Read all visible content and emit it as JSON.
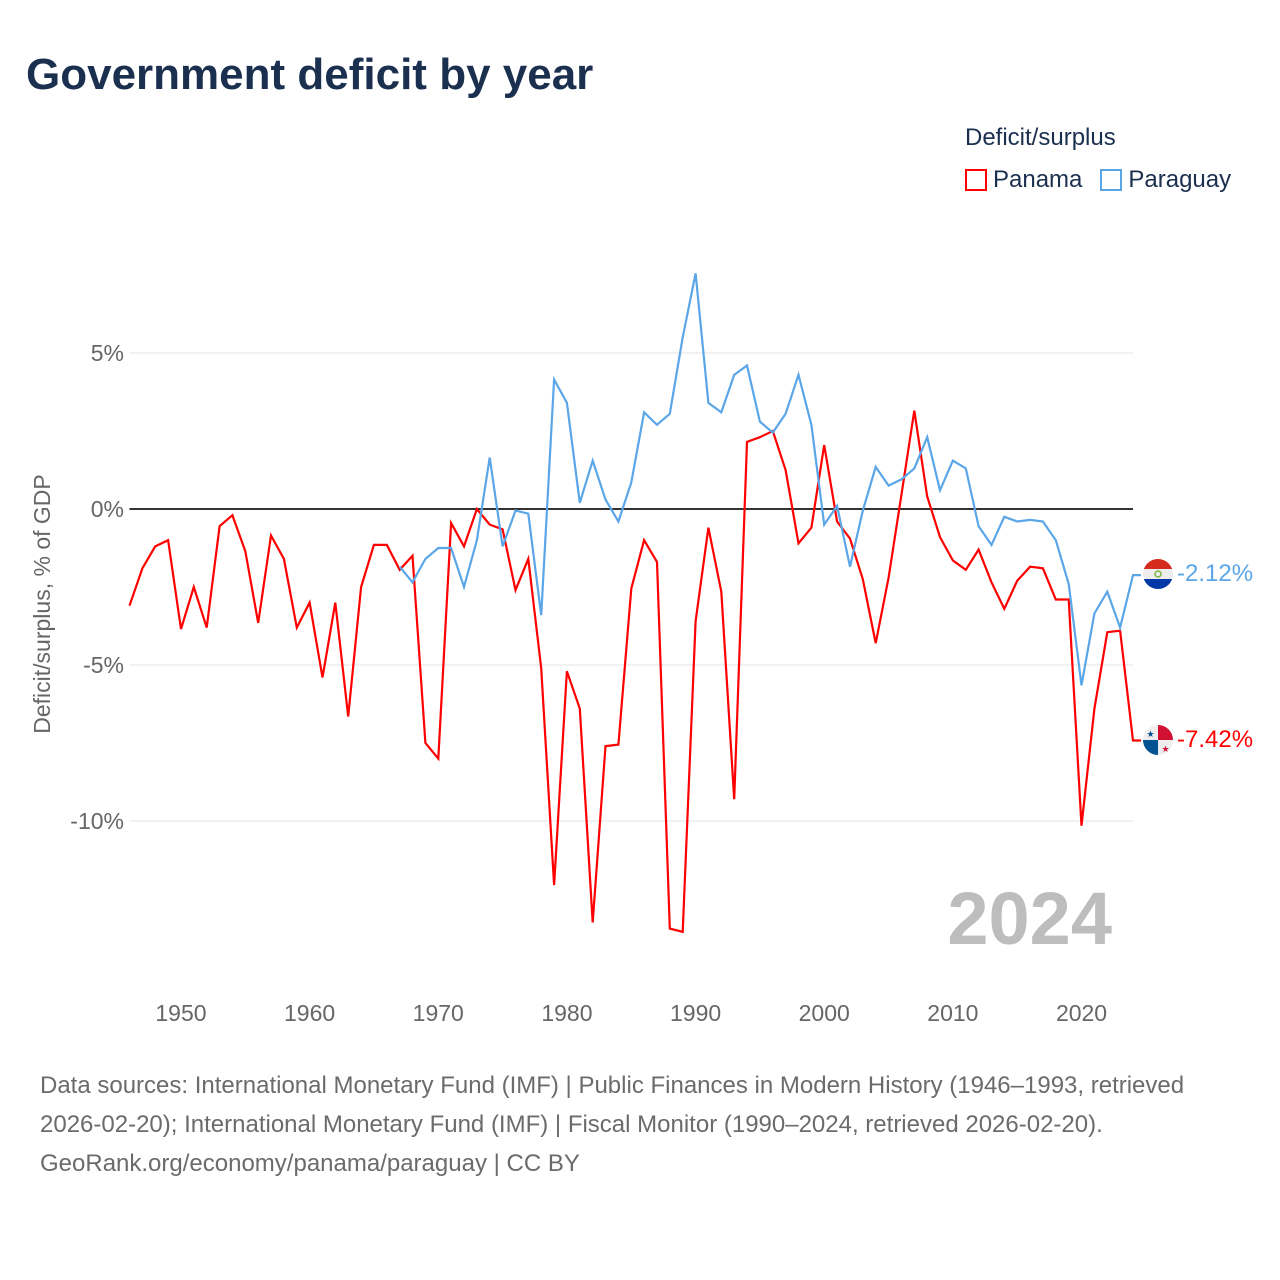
{
  "title": "Government deficit by year",
  "legend": {
    "title": "Deficit/surplus",
    "items": [
      {
        "label": "Panama",
        "color": "#ff0000"
      },
      {
        "label": "Paraguay",
        "color": "#5aa6e8"
      }
    ]
  },
  "year_watermark": "2024",
  "footer": {
    "sources": "Data sources: International Monetary Fund (IMF) | Public Finances in Modern History (1946–1993, retrieved 2026-02-20); International Monetary Fund (IMF) | Fiscal Monitor (1990–2024, retrieved 2026-02-20).",
    "attribution": "GeoRank.org/economy/panama/paraguay | CC BY"
  },
  "chart_data": {
    "type": "line",
    "title": "Government deficit by year",
    "xlabel": "",
    "ylabel": "Deficit/surplus, % of GDP",
    "xlim": [
      1946,
      2024
    ],
    "ylim": [
      -14.5,
      8
    ],
    "x_ticks": [
      1950,
      1960,
      1970,
      1980,
      1990,
      2000,
      2010,
      2020
    ],
    "x_tick_labels": [
      "1950",
      "1960",
      "1970",
      "1980",
      "1990",
      "2000",
      "2010",
      "2020"
    ],
    "y_ticks": [
      5,
      0,
      -5,
      -10
    ],
    "y_tick_labels": [
      "5%",
      "0%",
      "-5%",
      "-10%"
    ],
    "grid": true,
    "legend_position": "top-right",
    "series": [
      {
        "name": "Panama",
        "color": "#ff0000",
        "start_year": 1946,
        "end_label": "-7.42%",
        "values": [
          -3.1,
          -1.9,
          -1.2,
          -1.0,
          -3.85,
          -2.5,
          -3.8,
          -0.55,
          -0.2,
          -1.35,
          -3.65,
          -0.85,
          -1.6,
          -3.8,
          -3.0,
          -5.4,
          -3.0,
          -6.65,
          -2.5,
          -1.15,
          -1.15,
          -1.95,
          -1.5,
          -7.5,
          -8.0,
          -0.45,
          -1.2,
          0.0,
          -0.5,
          -0.65,
          -2.6,
          -1.6,
          -5.1,
          -12.05,
          -5.2,
          -6.4,
          -13.25,
          -7.6,
          -7.55,
          -2.55,
          -1.0,
          -1.7,
          -13.45,
          -13.55,
          -3.6,
          -0.6,
          -2.65,
          -9.3,
          2.15,
          2.3,
          2.5,
          1.25,
          -1.1,
          -0.6,
          2.05,
          -0.4,
          -0.95,
          -2.25,
          -4.3,
          -2.2,
          0.45,
          3.15,
          0.4,
          -0.9,
          -1.65,
          -1.95,
          -1.3,
          -2.35,
          -3.2,
          -2.3,
          -1.85,
          -1.9,
          -2.9,
          -2.9,
          -10.15,
          -6.4,
          -3.95,
          -3.9,
          -7.42
        ]
      },
      {
        "name": "Paraguay",
        "color": "#5aa6e8",
        "start_year": 1967,
        "end_label": "-2.12%",
        "values": [
          -1.85,
          -2.35,
          -1.6,
          -1.25,
          -1.25,
          -2.5,
          -1.0,
          1.65,
          -1.2,
          -0.05,
          -0.15,
          -3.4,
          4.15,
          3.4,
          0.2,
          1.55,
          0.3,
          -0.4,
          0.85,
          3.1,
          2.7,
          3.05,
          5.5,
          7.55,
          3.4,
          3.1,
          4.3,
          4.6,
          2.8,
          2.45,
          3.05,
          4.3,
          2.7,
          -0.5,
          0.1,
          -1.85,
          -0.05,
          1.35,
          0.75,
          0.95,
          1.3,
          2.3,
          0.6,
          1.55,
          1.3,
          -0.55,
          -1.15,
          -0.25,
          -0.4,
          -0.35,
          -0.4,
          -1.0,
          -2.4,
          -5.65,
          -3.35,
          -2.65,
          -3.8,
          -2.12
        ]
      }
    ]
  }
}
